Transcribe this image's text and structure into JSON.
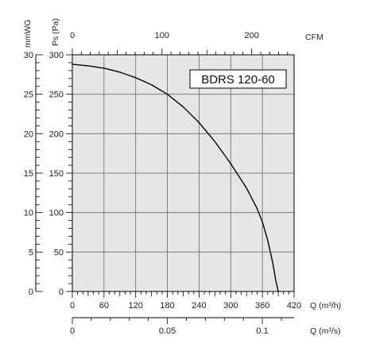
{
  "chart_data": {
    "type": "line",
    "model_label": "BDRS 120-60",
    "y_left": {
      "label": "Ps (Pa)",
      "range": [
        0,
        300
      ],
      "ticks": [
        0,
        50,
        100,
        150,
        200,
        250,
        300
      ]
    },
    "y_far_left": {
      "label": "mmWG",
      "range": [
        0,
        30
      ],
      "ticks": [
        0,
        5,
        10,
        15,
        20,
        25,
        30
      ]
    },
    "x_bottom": {
      "label": "Q (m³/h)",
      "range": [
        0,
        420
      ],
      "ticks": [
        0,
        60,
        120,
        180,
        240,
        300,
        360,
        420
      ]
    },
    "x_top": {
      "label": "CFM",
      "range": [
        0,
        247.2
      ],
      "ticks": [
        0,
        100,
        200
      ]
    },
    "x_lower": {
      "label": "Q (m³/s)",
      "range": [
        0,
        0.1167
      ],
      "ticks": [
        0,
        0.05,
        0.1
      ],
      "tick_labels": [
        "0",
        "0.05",
        "0.1"
      ]
    },
    "grid": true,
    "series": [
      {
        "x": [
          0,
          30,
          60,
          90,
          120,
          150,
          180,
          210,
          240,
          270,
          300,
          330,
          350,
          360,
          370,
          380,
          385,
          390
        ],
        "y": [
          288,
          286,
          283,
          278,
          271,
          262,
          250,
          234,
          214,
          190,
          162,
          131,
          105,
          88,
          65,
          35,
          15,
          0
        ]
      }
    ],
    "colors": {
      "plot_background": "#e6e6e6",
      "grid": "#666666",
      "curve": "#000000",
      "axis": "#000000"
    }
  }
}
